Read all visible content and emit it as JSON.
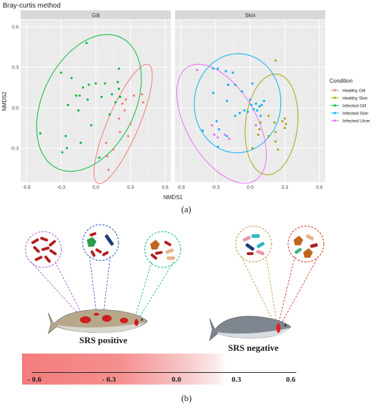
{
  "chart_data": {
    "type": "scatter",
    "title": "Bray-curtis method",
    "xlabel": "NMDS1",
    "ylabel": "NMDS2",
    "xlim": [
      -0.65,
      0.65
    ],
    "ylim": [
      -0.55,
      0.65
    ],
    "xticks": [
      "-0.6",
      "-0.3",
      "0.0",
      "0.3",
      "0.6"
    ],
    "yticks": [
      "0.6",
      "0.3",
      "0.0",
      "-0.3"
    ],
    "grid": true,
    "legend_position": "right",
    "legend_title": "Condition",
    "facets": [
      {
        "name": "Gill",
        "series": [
          {
            "name": "Healthy Gill",
            "color": "#f8766d",
            "points": [
              [
                0.33,
                0.09
              ],
              [
                0.4,
                0.1
              ],
              [
                0.26,
                0.06
              ],
              [
                0.41,
                0.04
              ],
              [
                0.23,
                0.03
              ],
              [
                0.25,
                -0.02
              ],
              [
                0.2,
                -0.08
              ],
              [
                0.3,
                -0.12
              ],
              [
                0.21,
                -0.18
              ],
              [
                0.28,
                -0.21
              ],
              [
                0.09,
                -0.26
              ],
              [
                0.15,
                -0.31
              ],
              [
                0.1,
                -0.36
              ],
              [
                0.11,
                -0.46
              ]
            ]
          },
          {
            "name": "Infected Gill",
            "color": "#00ba38",
            "points": [
              [
                -0.08,
                0.48
              ],
              [
                -0.3,
                0.26
              ],
              [
                -0.21,
                0.22
              ],
              [
                -0.17,
                0.09
              ],
              [
                -0.06,
                0.17
              ],
              [
                0.0,
                0.18
              ],
              [
                0.08,
                0.18
              ],
              [
                0.19,
                0.19
              ],
              [
                0.2,
                0.14
              ],
              [
                0.14,
                0.1
              ],
              [
                -0.11,
                0.15
              ],
              [
                -0.14,
                0.09
              ],
              [
                -0.07,
                0.06
              ],
              [
                0.05,
                0.08
              ],
              [
                0.21,
                0.08
              ],
              [
                -0.24,
                0.02
              ],
              [
                -0.15,
                -0.02
              ],
              [
                0.12,
                -0.05
              ],
              [
                -0.04,
                -0.13
              ],
              [
                -0.26,
                -0.21
              ],
              [
                -0.13,
                -0.26
              ],
              [
                -0.48,
                -0.19
              ],
              [
                -0.29,
                -0.33
              ],
              [
                -0.25,
                -0.3
              ],
              [
                0.03,
                -0.37
              ],
              [
                0.2,
                0.29
              ],
              [
                0.17,
                0.04
              ]
            ]
          }
        ],
        "ellipses": [
          "Healthy Gill",
          "Infected Gill"
        ]
      },
      {
        "name": "Skin",
        "series": [
          {
            "name": "Healthy Skin",
            "color": "#a3a500",
            "points": [
              [
                0.22,
                0.35
              ],
              [
                0.08,
                0.01
              ],
              [
                0.16,
                -0.06
              ],
              [
                0.3,
                -0.08
              ],
              [
                0.28,
                -0.1
              ],
              [
                0.21,
                -0.11
              ],
              [
                0.08,
                -0.16
              ],
              [
                0.3,
                -0.15
              ],
              [
                0.22,
                -0.18
              ],
              [
                0.07,
                -0.2
              ],
              [
                0.22,
                -0.25
              ],
              [
                0.24,
                -0.31
              ],
              [
                0.02,
                -0.3
              ],
              [
                0.09,
                -0.11
              ],
              [
                0.16,
                -0.21
              ],
              [
                0.31,
                -0.12
              ]
            ]
          },
          {
            "name": "Infected Skin",
            "color": "#00b0f6",
            "points": [
              [
                -0.28,
                0.29
              ],
              [
                -0.32,
                0.29
              ],
              [
                -0.21,
                0.27
              ],
              [
                -0.15,
                0.26
              ],
              [
                -0.32,
                0.11
              ],
              [
                -0.19,
                0.17
              ],
              [
                -0.13,
                0.17
              ],
              [
                -0.07,
                0.12
              ],
              [
                0.02,
                0.18
              ],
              [
                -0.2,
                0.05
              ],
              [
                -0.13,
                -0.06
              ],
              [
                -0.29,
                -0.1
              ],
              [
                -0.09,
                -0.04
              ],
              [
                0.0,
                0.06
              ],
              [
                0.01,
                0.02
              ],
              [
                0.05,
                0.03
              ],
              [
                0.08,
                0.01
              ],
              [
                0.06,
                -0.02
              ],
              [
                0.1,
                0.02
              ],
              [
                0.12,
                0.05
              ],
              [
                0.03,
                -0.01
              ],
              [
                -0.02,
                -0.03
              ],
              [
                -0.2,
                -0.21
              ],
              [
                -0.28,
                -0.29
              ],
              [
                -0.41,
                -0.17
              ],
              [
                -0.27,
                -0.16
              ],
              [
                -0.05,
                -0.02
              ],
              [
                0.09,
                -0.06
              ]
            ]
          },
          {
            "name": "Infected Ulcer",
            "color": "#e76bf3",
            "points": [
              [
                -0.46,
                0.28
              ],
              [
                -0.33,
                -0.13
              ],
              [
                -0.28,
                -0.22
              ],
              [
                -0.22,
                -0.2
              ],
              [
                -0.18,
                -0.23
              ],
              [
                -0.31,
                -0.2
              ],
              [
                0.05,
                -0.13
              ]
            ]
          }
        ],
        "ellipses": [
          "Infected Skin",
          "Infected Ulcer",
          "Healthy Skin"
        ]
      }
    ]
  },
  "panel_a": "(a)",
  "panel_b": "(b)",
  "fish": {
    "positive_label": "SRS positive",
    "negative_label": "SRS negative"
  },
  "gradient_scale": {
    "ticks": [
      "- 0.6",
      "- 0.3",
      "0.0",
      "0.3",
      "0.6"
    ]
  }
}
